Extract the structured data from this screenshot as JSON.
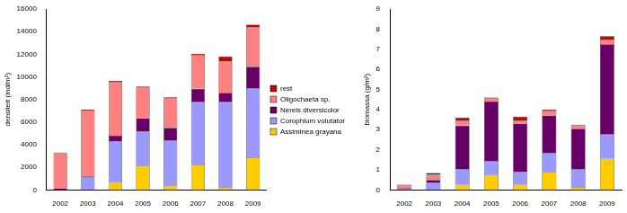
{
  "chart_data": [
    {
      "type": "bar",
      "stacked": true,
      "grid": false,
      "legend": "right",
      "y_label": "densiteit (ind/m²)",
      "categories": [
        "2002",
        "2003",
        "2004",
        "2005",
        "2006",
        "2007",
        "2008",
        "2009"
      ],
      "ylim": [
        0,
        16000
      ],
      "yticks": [
        0,
        2000,
        4000,
        6000,
        8000,
        10000,
        12000,
        14000,
        16000
      ],
      "series": [
        {
          "name": "Assiminea grayana",
          "color": "#ffcc00",
          "values": [
            0,
            0,
            700,
            2150,
            400,
            2250,
            250,
            2900
          ]
        },
        {
          "name": "Corophium volutator",
          "color": "#9999ff",
          "values": [
            0,
            1100,
            3600,
            3000,
            4000,
            5500,
            7500,
            6100
          ]
        },
        {
          "name": "Nereis diversicolor",
          "color": "#660066",
          "values": [
            150,
            100,
            500,
            1200,
            1100,
            1200,
            850,
            1900
          ]
        },
        {
          "name": "Oligochaeta sp.",
          "color": "#ff8080",
          "values": [
            3100,
            5800,
            4700,
            2700,
            2600,
            3000,
            2750,
            3500
          ]
        },
        {
          "name": "rest",
          "color": "#cc0000",
          "values": [
            50,
            100,
            150,
            100,
            100,
            100,
            450,
            200
          ]
        }
      ]
    },
    {
      "type": "bar",
      "stacked": true,
      "grid": false,
      "y_label": "biomassa (g/m²)",
      "categories": [
        "2002",
        "2003",
        "2004",
        "2005",
        "2006",
        "2007",
        "2008",
        "2009"
      ],
      "ylim": [
        0,
        9
      ],
      "yticks": [
        0,
        1,
        2,
        3,
        4,
        5,
        6,
        7,
        8,
        9
      ],
      "series": [
        {
          "name": "Assiminea grayana",
          "color": "#ffcc00",
          "values": [
            0,
            0,
            0.25,
            0.75,
            0.25,
            0.9,
            0.15,
            1.55
          ]
        },
        {
          "name": "Corophium volutator",
          "color": "#9999ff",
          "values": [
            0.05,
            0.35,
            0.8,
            0.7,
            0.65,
            0.95,
            0.9,
            1.2
          ]
        },
        {
          "name": "Nereis diversicolor",
          "color": "#660066",
          "values": [
            0.05,
            0.15,
            2.15,
            2.95,
            2.4,
            1.85,
            2.0,
            4.5
          ]
        },
        {
          "name": "Oligochaeta sp.",
          "color": "#ff8080",
          "values": [
            0.15,
            0.25,
            0.25,
            0.15,
            0.15,
            0.25,
            0.15,
            0.2
          ]
        },
        {
          "name": "rest",
          "color": "#cc0000",
          "values": [
            0.03,
            0.1,
            0.15,
            0.05,
            0.2,
            0.05,
            0.05,
            0.2
          ]
        }
      ]
    }
  ]
}
